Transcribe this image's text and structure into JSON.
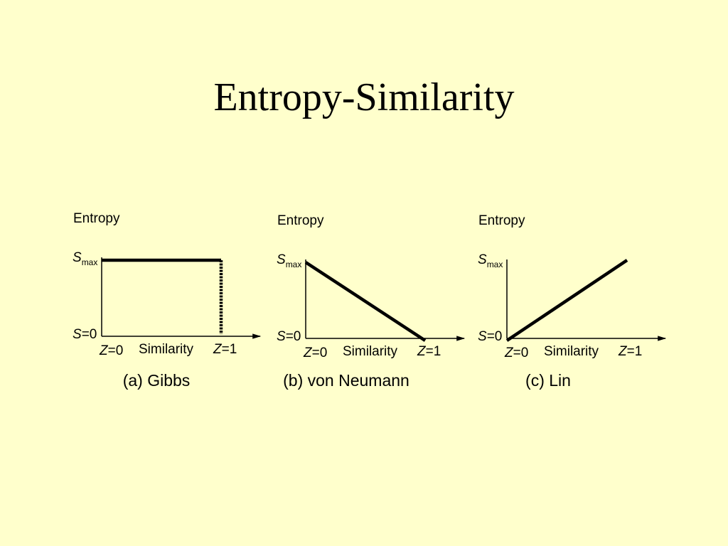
{
  "title": "Entropy-Similarity",
  "panels": [
    {
      "y_label": "Entropy",
      "y_max": {
        "symbol": "S",
        "subscript": "max"
      },
      "y_zero": {
        "symbol": "S",
        "suffix": "=0"
      },
      "x_start": {
        "symbol": "Z",
        "suffix": "=0"
      },
      "x_label": "Similarity",
      "x_end": {
        "symbol": "Z",
        "suffix": "=1"
      },
      "caption": "(a) Gibbs"
    },
    {
      "y_label": "Entropy",
      "y_max": {
        "symbol": "S",
        "subscript": "max"
      },
      "y_zero": {
        "symbol": "S",
        "suffix": "=0"
      },
      "x_start": {
        "symbol": "Z",
        "suffix": "=0"
      },
      "x_label": "Similarity",
      "x_end": {
        "symbol": "Z",
        "suffix": "=1"
      },
      "caption": "(b) von Neumann"
    },
    {
      "y_label": "Entropy",
      "y_max": {
        "symbol": "S",
        "subscript": "max"
      },
      "y_zero": {
        "symbol": "S",
        "suffix": "=0"
      },
      "x_start": {
        "symbol": "Z",
        "suffix": "=0"
      },
      "x_label": "Similarity",
      "x_end": {
        "symbol": "Z",
        "suffix": "=1"
      },
      "caption": "(c) Lin"
    }
  ]
}
